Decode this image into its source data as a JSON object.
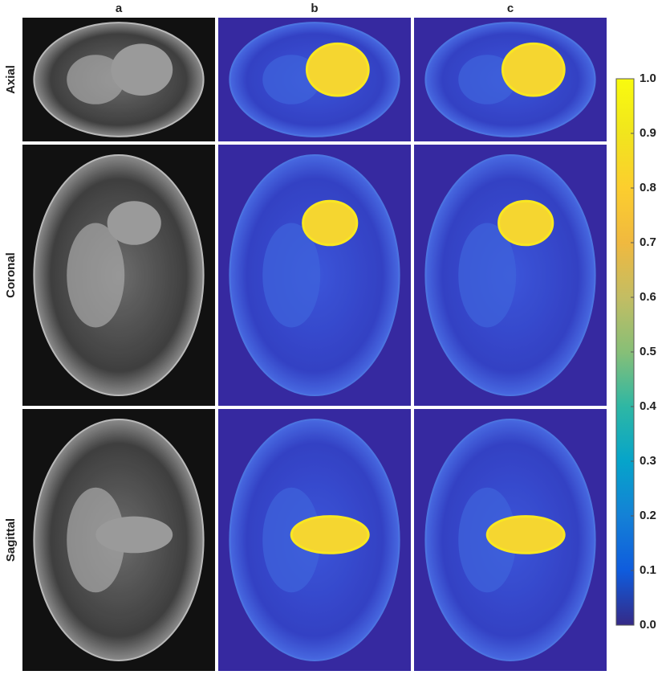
{
  "columns": [
    "a",
    "b",
    "c"
  ],
  "rows": [
    "Axial",
    "Coronal",
    "Sagittal"
  ],
  "colorbar": {
    "range": [
      0,
      1
    ],
    "ticks": [
      {
        "value": 0,
        "label": "0.0"
      },
      0.1,
      0.2,
      0.3,
      0.4,
      0.5,
      0.6,
      0.7,
      0.8,
      0.9,
      {
        "value": 1,
        "label": "1.0"
      }
    ]
  }
}
